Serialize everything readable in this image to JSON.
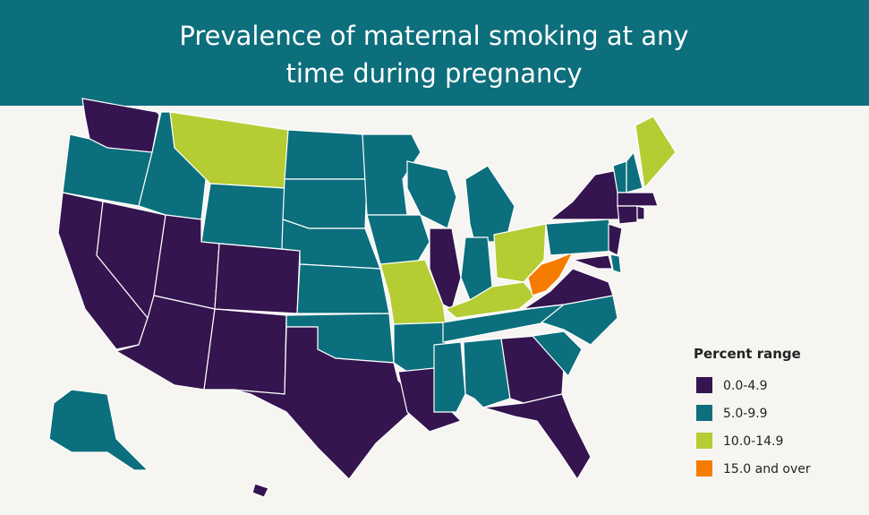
{
  "title": {
    "line1": "Prevalence of maternal smoking at any",
    "line2": "time during pregnancy"
  },
  "legend": {
    "title": "Percent range",
    "items": [
      {
        "label": "0.0-4.9",
        "color": "#34154f"
      },
      {
        "label": "5.0-9.9",
        "color": "#0b6f7d"
      },
      {
        "label": "10.0-14.9",
        "color": "#b5cc33"
      },
      {
        "label": "15.0 and over",
        "color": "#f57c00"
      }
    ]
  }
}
